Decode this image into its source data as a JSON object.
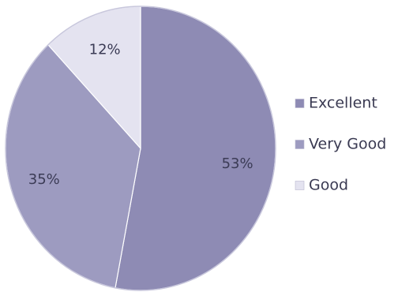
{
  "chart_data": {
    "type": "pie",
    "slices": [
      {
        "label": "Excellent",
        "value": 53,
        "display": "53%",
        "color": "#8e8bb4"
      },
      {
        "label": "Very Good",
        "value": 35,
        "display": "35%",
        "color": "#9d9bc0"
      },
      {
        "label": "Good",
        "value": 12,
        "display": "12%",
        "color": "#e4e3f0"
      }
    ],
    "legend": {
      "position": "right",
      "entries": [
        "Excellent",
        "Very Good",
        "Good"
      ]
    },
    "start_angle": "top",
    "direction": "clockwise"
  }
}
